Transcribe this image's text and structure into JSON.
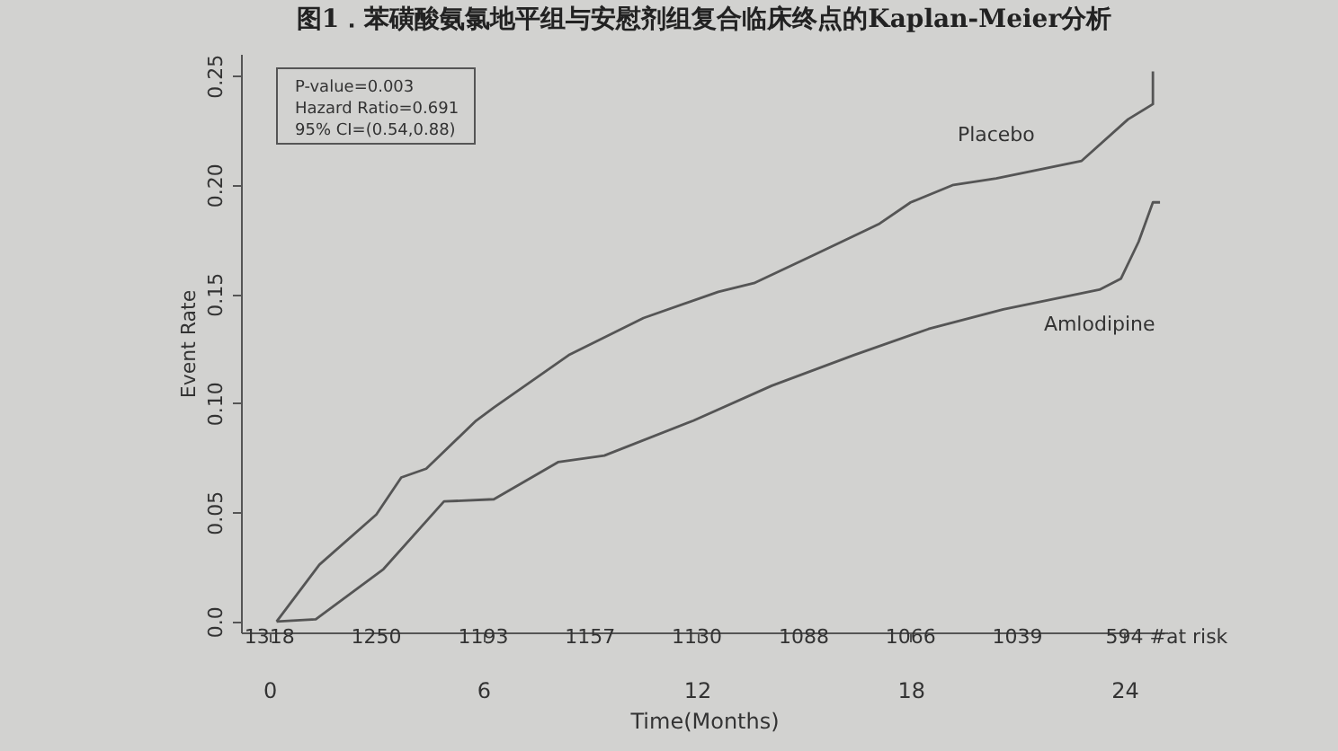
{
  "chart_data": {
    "type": "line",
    "title": "图1．苯磺酸氨氯地平组与安慰剂组复合临床终点的Kaplan-Meier分析",
    "xlabel": "Time(Months)",
    "ylabel": "Event Rate",
    "series": [
      {
        "name": "Placebo",
        "color": "#555555",
        "x": [
          0.2,
          1.4,
          3.0,
          3.7,
          4.4,
          5.8,
          6.3,
          8.4,
          10.5,
          12.6,
          13.6,
          15.3,
          17.1,
          18.0,
          19.2,
          20.4,
          22.8,
          24.1,
          24.8,
          24.8
        ],
        "values": [
          0.0,
          0.026,
          0.049,
          0.066,
          0.07,
          0.092,
          0.098,
          0.122,
          0.139,
          0.151,
          0.155,
          0.168,
          0.182,
          0.192,
          0.2,
          0.203,
          0.211,
          0.23,
          0.237,
          0.252
        ]
      },
      {
        "name": "Amlodipine",
        "color": "#555555",
        "x": [
          0.2,
          1.3,
          3.2,
          4.9,
          6.3,
          8.1,
          9.4,
          11.9,
          14.1,
          16.4,
          18.5,
          20.6,
          23.3,
          23.9,
          24.4,
          24.8,
          25.0
        ],
        "values": [
          0.0,
          0.001,
          0.024,
          0.055,
          0.056,
          0.073,
          0.076,
          0.092,
          0.108,
          0.122,
          0.134,
          0.143,
          0.152,
          0.157,
          0.174,
          0.192,
          0.192
        ]
      }
    ],
    "xlim": [
      -0.8,
      25.2
    ],
    "xticks": [
      0,
      6,
      12,
      18,
      24
    ],
    "ylim": [
      -0.005,
      0.26
    ],
    "yticks": [
      {
        "value": 0,
        "label": "0.0"
      },
      0.05,
      {
        "value": 0.1,
        "label": "0.10"
      },
      0.15,
      {
        "value": 0.2,
        "label": "0.20"
      },
      0.25
    ],
    "grid": false,
    "legend": false,
    "line_style": "solid",
    "annotations": [
      "P-value=0.003",
      "Hazard Ratio=0.691",
      "95% CI=(0.54,0.88)",
      "1318",
      "1250",
      "1193",
      "1157",
      "1130",
      "1088",
      "1066",
      "1039",
      "594",
      "#at risk"
    ]
  }
}
